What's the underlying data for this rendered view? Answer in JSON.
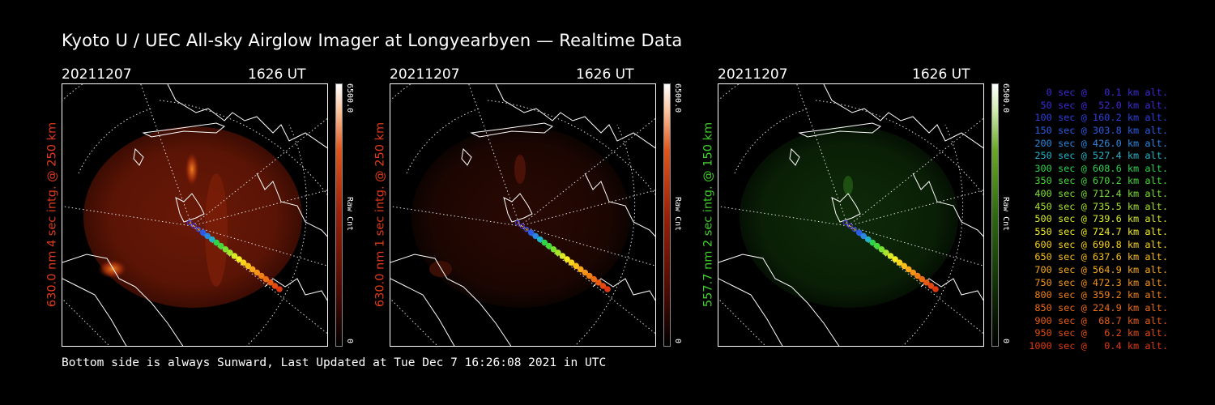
{
  "title": "Kyoto U / UEC All-sky Airglow Imager at Longyearbyen — Realtime Data",
  "footer": "Bottom side is always Sunward, Last Updated at Tue Dec  7 16:26:08 2021 in UTC",
  "panels": [
    {
      "date": "20211207",
      "time": "1626 UT",
      "ylabel": "630.0 nm 4 sec intg. @ 250 km",
      "label_color": "#e03a1a",
      "colorbar_max": "6500.0",
      "colorbar_min": "0",
      "colorbar_label": "Raw Cnt"
    },
    {
      "date": "20211207",
      "time": "1626 UT",
      "ylabel": "630.0 nm 1 sec intg. @ 250 km",
      "label_color": "#e03a1a",
      "colorbar_max": "6500.0",
      "colorbar_min": "0",
      "colorbar_label": "Raw Cnt"
    },
    {
      "date": "20211207",
      "time": "1626 UT",
      "ylabel": "557.7 nm 2 sec intg. @ 150 km",
      "label_color": "#3fcf2a",
      "colorbar_max": "6500.0",
      "colorbar_min": "0",
      "colorbar_label": "Raw Cnt"
    }
  ],
  "legend": [
    {
      "text": "0 sec @   0.1 km alt.",
      "color": "#3b2bd6"
    },
    {
      "text": "50 sec @  52.0 km alt.",
      "color": "#3b2bd6"
    },
    {
      "text": "100 sec @ 160.2 km alt.",
      "color": "#2b40e0"
    },
    {
      "text": "150 sec @ 303.8 km alt.",
      "color": "#2b5ce6"
    },
    {
      "text": "200 sec @ 426.0 km alt.",
      "color": "#2a88e0"
    },
    {
      "text": "250 sec @ 527.4 km alt.",
      "color": "#23b3c8"
    },
    {
      "text": "300 sec @ 608.6 km alt.",
      "color": "#2fd24a"
    },
    {
      "text": "350 sec @ 670.2 km alt.",
      "color": "#46d838"
    },
    {
      "text": "400 sec @ 712.4 km alt.",
      "color": "#78e030"
    },
    {
      "text": "450 sec @ 735.5 km alt.",
      "color": "#a8e42c"
    },
    {
      "text": "500 sec @ 739.6 km alt.",
      "color": "#d6ea28"
    },
    {
      "text": "550 sec @ 724.7 km alt.",
      "color": "#f4ee22"
    },
    {
      "text": "600 sec @ 690.8 km alt.",
      "color": "#f8d21e"
    },
    {
      "text": "650 sec @ 637.6 km alt.",
      "color": "#f8be1c"
    },
    {
      "text": "700 sec @ 564.9 km alt.",
      "color": "#f8a81a"
    },
    {
      "text": "750 sec @ 472.3 km alt.",
      "color": "#f59418"
    },
    {
      "text": "800 sec @ 359.2 km alt.",
      "color": "#f08016"
    },
    {
      "text": "850 sec @ 224.9 km alt.",
      "color": "#ec6c14"
    },
    {
      "text": "900 sec @  68.7 km alt.",
      "color": "#e85a12"
    },
    {
      "text": "950 sec @   6.2 km alt.",
      "color": "#e44a10"
    },
    {
      "text": "1000 sec @   0.4 km alt.",
      "color": "#e0380e"
    }
  ]
}
